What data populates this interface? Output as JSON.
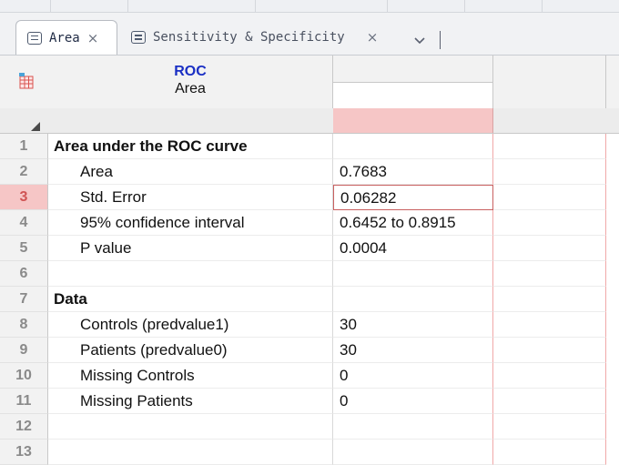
{
  "tabs": [
    {
      "label": "Area",
      "active": true
    },
    {
      "label": "Sensitivity & Specificity",
      "active": false
    }
  ],
  "table": {
    "title": "ROC",
    "subtitle": "Area"
  },
  "rows": [
    {
      "num": "1",
      "label": "Area under the ROC curve",
      "value": "",
      "type": "heading"
    },
    {
      "num": "2",
      "label": "Area",
      "value": "0.7683",
      "type": "item"
    },
    {
      "num": "3",
      "label": "Std. Error",
      "value": "0.06282",
      "type": "item",
      "selected": true
    },
    {
      "num": "4",
      "label": "95% confidence interval",
      "value": "0.6452 to 0.8915",
      "type": "item"
    },
    {
      "num": "5",
      "label": "P value",
      "value": "0.0004",
      "type": "item"
    },
    {
      "num": "6",
      "label": "",
      "value": "",
      "type": "item"
    },
    {
      "num": "7",
      "label": "Data",
      "value": "",
      "type": "heading"
    },
    {
      "num": "8",
      "label": "Controls (predvalue1)",
      "value": "30",
      "type": "item"
    },
    {
      "num": "9",
      "label": "Patients (predvalue0)",
      "value": "30",
      "type": "item"
    },
    {
      "num": "10",
      "label": "Missing Controls",
      "value": "0",
      "type": "item"
    },
    {
      "num": "11",
      "label": "Missing Patients",
      "value": "0",
      "type": "item"
    },
    {
      "num": "12",
      "label": "",
      "value": "",
      "type": "item"
    },
    {
      "num": "13",
      "label": "",
      "value": "",
      "type": "item"
    }
  ],
  "colors": {
    "selection": "#f6c6c6",
    "title_blue": "#1a2fc4"
  },
  "icons": {
    "tab": "document-icon",
    "close": "close-icon",
    "overflow": "chevron-down-icon",
    "table": "table-icon"
  }
}
